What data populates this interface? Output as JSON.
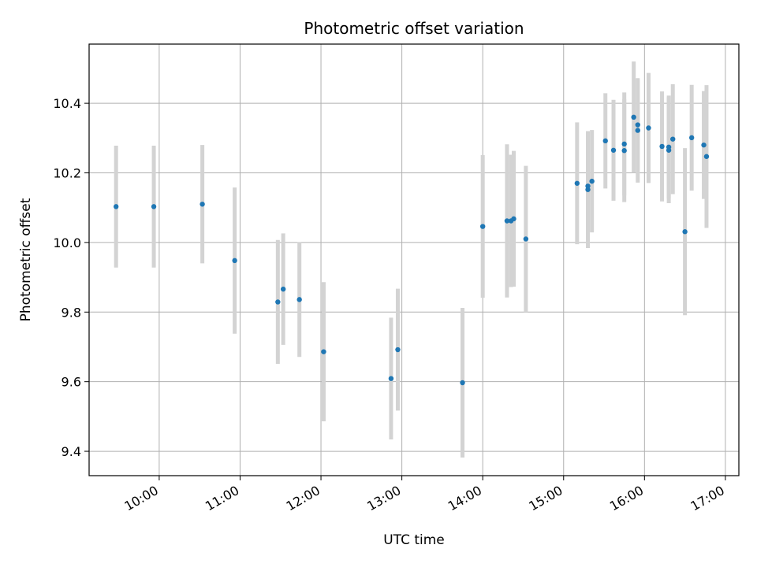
{
  "chart_data": {
    "type": "scatter",
    "title": "Photometric offset variation",
    "xlabel": "UTC time",
    "ylabel": "Photometric offset",
    "x_ticks": [
      "10:00",
      "11:00",
      "12:00",
      "13:00",
      "14:00",
      "15:00",
      "16:00",
      "17:00"
    ],
    "y_ticks": [
      "9.4",
      "9.6",
      "9.8",
      "10.0",
      "10.2",
      "10.4"
    ],
    "xlim": [
      "09:08",
      "17:10"
    ],
    "ylim": [
      9.33,
      10.57
    ],
    "grid": true,
    "point_color": "#1f77b4",
    "errorbar_color": "#d3d3d3",
    "points": [
      {
        "x": "09:28",
        "y": 10.103,
        "err": 0.175
      },
      {
        "x": "09:56",
        "y": 10.103,
        "err": 0.175
      },
      {
        "x": "10:32",
        "y": 10.11,
        "err": 0.17
      },
      {
        "x": "10:56",
        "y": 9.948,
        "err": 0.21
      },
      {
        "x": "11:28",
        "y": 9.829,
        "err": 0.178
      },
      {
        "x": "11:32",
        "y": 9.866,
        "err": 0.16
      },
      {
        "x": "11:44",
        "y": 9.836,
        "err": 0.165
      },
      {
        "x": "12:02",
        "y": 9.686,
        "err": 0.2
      },
      {
        "x": "12:52",
        "y": 9.609,
        "err": 0.175
      },
      {
        "x": "12:57",
        "y": 9.692,
        "err": 0.175
      },
      {
        "x": "13:45",
        "y": 9.597,
        "err": 0.215
      },
      {
        "x": "14:00",
        "y": 10.046,
        "err": 0.205
      },
      {
        "x": "14:18",
        "y": 10.062,
        "err": 0.22
      },
      {
        "x": "14:21",
        "y": 10.062,
        "err": 0.19
      },
      {
        "x": "14:23",
        "y": 10.068,
        "err": 0.195
      },
      {
        "x": "14:32",
        "y": 10.01,
        "err": 0.21
      },
      {
        "x": "15:10",
        "y": 10.17,
        "err": 0.175
      },
      {
        "x": "15:18",
        "y": 10.152,
        "err": 0.168
      },
      {
        "x": "15:18",
        "y": 10.162,
        "err": 0.155
      },
      {
        "x": "15:21",
        "y": 10.176,
        "err": 0.147
      },
      {
        "x": "15:31",
        "y": 10.292,
        "err": 0.137
      },
      {
        "x": "15:37",
        "y": 10.265,
        "err": 0.145
      },
      {
        "x": "15:45",
        "y": 10.264,
        "err": 0.148
      },
      {
        "x": "15:45",
        "y": 10.283,
        "err": 0.148
      },
      {
        "x": "15:52",
        "y": 10.36,
        "err": 0.16
      },
      {
        "x": "15:55",
        "y": 10.322,
        "err": 0.15
      },
      {
        "x": "15:55",
        "y": 10.338,
        "err": 0.13
      },
      {
        "x": "16:03",
        "y": 10.329,
        "err": 0.158
      },
      {
        "x": "16:13",
        "y": 10.276,
        "err": 0.158
      },
      {
        "x": "16:18",
        "y": 10.265,
        "err": 0.152
      },
      {
        "x": "16:18",
        "y": 10.274,
        "err": 0.148
      },
      {
        "x": "16:21",
        "y": 10.297,
        "err": 0.158
      },
      {
        "x": "16:30",
        "y": 10.031,
        "err": 0.24
      },
      {
        "x": "16:35",
        "y": 10.301,
        "err": 0.152
      },
      {
        "x": "16:44",
        "y": 10.28,
        "err": 0.155
      },
      {
        "x": "16:46",
        "y": 10.247,
        "err": 0.205
      }
    ]
  }
}
